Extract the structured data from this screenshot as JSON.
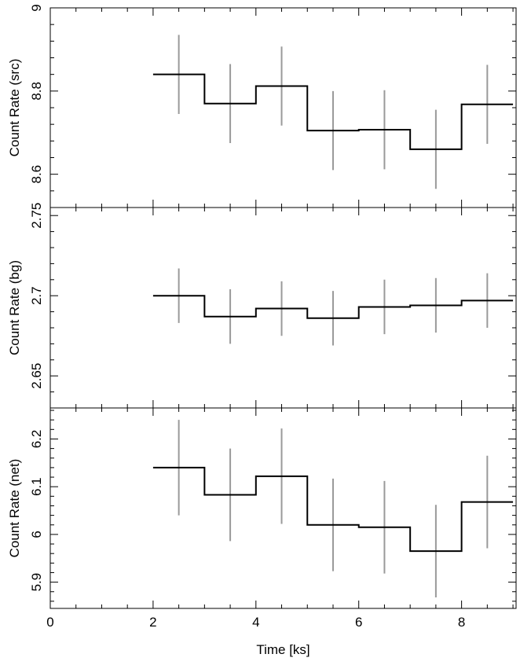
{
  "chart_data": {
    "type": "line",
    "style": "step-with-errorbars",
    "x_label": "Time [ks]",
    "x_range": [
      0,
      9.06
    ],
    "x_ticks": [
      0,
      2,
      4,
      6,
      8
    ],
    "colors": {
      "step": "#000000",
      "errorbar": "#9a9a9a"
    },
    "panels": [
      {
        "ylabel": "Count Rate (src)",
        "ylim": [
          8.52,
          9.0
        ],
        "yticks": [
          8.6,
          8.8,
          9
        ],
        "ytick_labels": [
          "8.6",
          "8.8",
          "9"
        ],
        "series": [
          {
            "bins": [
              [
                2,
                3
              ],
              [
                3,
                4
              ],
              [
                4,
                5
              ],
              [
                5,
                6
              ],
              [
                6,
                7
              ],
              [
                7,
                8
              ],
              [
                8,
                9
              ]
            ],
            "x": [
              2.5,
              3.5,
              4.5,
              5.5,
              6.5,
              7.5,
              8.5
            ],
            "y": [
              8.84,
              8.77,
              8.812,
              8.705,
              8.707,
              8.66,
              8.768
            ],
            "err": [
              0.095,
              0.095,
              0.095,
              0.095,
              0.095,
              0.095,
              0.095
            ]
          }
        ]
      },
      {
        "ylabel": "Count Rate (bg)",
        "ylim": [
          2.63,
          2.755
        ],
        "yticks": [
          2.65,
          2.7,
          2.75
        ],
        "ytick_labels": [
          "2.65",
          "2.7",
          "2.75"
        ],
        "series": [
          {
            "bins": [
              [
                2,
                3
              ],
              [
                3,
                4
              ],
              [
                4,
                5
              ],
              [
                5,
                6
              ],
              [
                6,
                7
              ],
              [
                7,
                8
              ],
              [
                8,
                9
              ]
            ],
            "x": [
              2.5,
              3.5,
              4.5,
              5.5,
              6.5,
              7.5,
              8.5
            ],
            "y": [
              2.7,
              2.687,
              2.692,
              2.686,
              2.693,
              2.694,
              2.697
            ],
            "err": [
              0.017,
              0.017,
              0.017,
              0.017,
              0.017,
              0.017,
              0.017
            ]
          }
        ]
      },
      {
        "ylabel": "Count Rate (net)",
        "ylim": [
          5.845,
          6.265
        ],
        "yticks": [
          5.9,
          6,
          6.1,
          6.2
        ],
        "ytick_labels": [
          "5.9",
          "6",
          "6.1",
          "6.2"
        ],
        "series": [
          {
            "bins": [
              [
                2,
                3
              ],
              [
                3,
                4
              ],
              [
                4,
                5
              ],
              [
                5,
                6
              ],
              [
                6,
                7
              ],
              [
                7,
                8
              ],
              [
                8,
                9
              ]
            ],
            "x": [
              2.5,
              3.5,
              4.5,
              5.5,
              6.5,
              7.5,
              8.5
            ],
            "y": [
              6.14,
              6.083,
              6.122,
              6.02,
              6.015,
              5.965,
              6.068
            ],
            "err": [
              0.1,
              0.097,
              0.1,
              0.097,
              0.097,
              0.097,
              0.097
            ]
          }
        ]
      }
    ]
  }
}
